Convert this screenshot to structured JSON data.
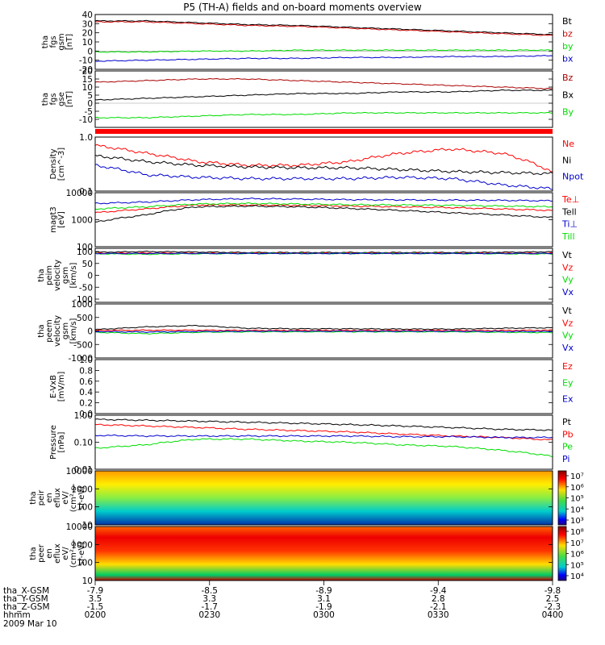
{
  "title": "P5 (TH-A) fields and on-board moments overview",
  "colors": {
    "black": "#000000",
    "red": "#ff0000",
    "dark_red": "#aa0000",
    "green": "#00dd00",
    "blue": "#0000cc",
    "flag": "#ff0000"
  },
  "chart_data": [
    {
      "type": "line",
      "ylabel": [
        "tha",
        "fgs",
        "gsm",
        "[nT]"
      ],
      "ylim": [
        -20,
        40
      ],
      "ticks": [
        "40",
        "30",
        "20",
        "10",
        "0",
        "-10",
        "-20"
      ],
      "tick_values": [
        40,
        30,
        20,
        10,
        0,
        -10,
        -20
      ],
      "series": [
        {
          "name": "Bt",
          "color": "#000000",
          "values": [
            33,
            33,
            31,
            29,
            28,
            26,
            24,
            22,
            20,
            18
          ]
        },
        {
          "name": "bz",
          "color": "#cc0000",
          "values": [
            32,
            32,
            30,
            28,
            27,
            25,
            23,
            21,
            19,
            17
          ]
        },
        {
          "name": "by",
          "color": "#00dd00",
          "values": [
            -1,
            -1,
            0,
            0,
            1,
            1,
            1,
            1,
            1,
            1
          ]
        },
        {
          "name": "bx",
          "color": "#0000cc",
          "values": [
            -11,
            -10,
            -9,
            -8,
            -8,
            -7,
            -7,
            -6,
            -6,
            -5
          ]
        }
      ]
    },
    {
      "type": "line",
      "ylabel": [
        "tha",
        "fgs",
        "gse",
        "[nT]"
      ],
      "ylim": [
        -15,
        20
      ],
      "ticks": [
        "20",
        "15",
        "10",
        "5",
        "0",
        "-5",
        "-10"
      ],
      "tick_values": [
        20,
        15,
        10,
        5,
        0,
        -5,
        -10
      ],
      "series": [
        {
          "name": "Bz",
          "color": "#aa0000",
          "values": [
            13,
            14,
            15,
            15,
            14,
            13,
            12,
            11,
            10,
            9
          ]
        },
        {
          "name": "Bx",
          "color": "#000000",
          "values": [
            2,
            3,
            4,
            5,
            6,
            6,
            7,
            7,
            8,
            8
          ]
        },
        {
          "name": "By",
          "color": "#00dd00",
          "values": [
            -9,
            -9,
            -8,
            -7,
            -7,
            -6,
            -6,
            -6,
            -6,
            -6
          ]
        }
      ]
    },
    {
      "type": "line",
      "ylabel": [
        "Density",
        "[cm^-3]"
      ],
      "scale": "log",
      "ylim": [
        0.1,
        1.0
      ],
      "ticks": [
        "1.0",
        "0.1"
      ],
      "tick_values": [
        1.0,
        0.1
      ],
      "series": [
        {
          "name": "Ne",
          "color": "#ff0000",
          "values": [
            0.7,
            0.5,
            0.35,
            0.3,
            0.3,
            0.35,
            0.5,
            0.6,
            0.5,
            0.22
          ]
        },
        {
          "name": "Ni",
          "color": "#000000",
          "values": [
            0.45,
            0.35,
            0.3,
            0.28,
            0.27,
            0.27,
            0.25,
            0.23,
            0.22,
            0.21
          ]
        },
        {
          "name": "Npot",
          "color": "#0000cc",
          "values": [
            0.3,
            0.2,
            0.18,
            0.17,
            0.17,
            0.17,
            0.18,
            0.17,
            0.13,
            0.11
          ]
        }
      ]
    },
    {
      "type": "line",
      "ylabel": [
        "magt3",
        "[eV]"
      ],
      "scale": "log",
      "ylim": [
        100,
        10000
      ],
      "ticks": [
        "10000",
        "1000",
        "100"
      ],
      "tick_values": [
        10000,
        1000,
        100
      ],
      "series": [
        {
          "name": "Te⊥",
          "color": "#ff0000",
          "values": [
            1800,
            2500,
            3500,
            3500,
            3400,
            3200,
            3000,
            2800,
            2500,
            2200
          ]
        },
        {
          "name": "Tell",
          "color": "#000000",
          "values": [
            800,
            1500,
            3000,
            3200,
            3000,
            2600,
            2200,
            1800,
            1500,
            1200
          ]
        },
        {
          "name": "Ti⊥",
          "color": "#0000cc",
          "values": [
            4000,
            4500,
            5500,
            6000,
            5800,
            5500,
            5400,
            5300,
            5200,
            5000
          ]
        },
        {
          "name": "Till",
          "color": "#00dd00",
          "values": [
            2500,
            3000,
            3800,
            4000,
            3800,
            3600,
            3500,
            3400,
            3200,
            3000
          ]
        }
      ]
    },
    {
      "type": "line",
      "ylabel": [
        "tha",
        "peim",
        "velocity",
        "gsm",
        "[km/s]"
      ],
      "ylim": [
        -1000,
        100
      ],
      "ticks": [
        "100",
        "50",
        "0",
        "-50",
        "-100"
      ],
      "series": [
        {
          "name": "Vt",
          "color": "#000000",
          "values": [
            20,
            35,
            25,
            15,
            15,
            15,
            15,
            15,
            20,
            30
          ]
        },
        {
          "name": "Vz",
          "color": "#ff0000",
          "values": [
            0,
            5,
            0,
            0,
            0,
            0,
            0,
            0,
            0,
            0
          ]
        },
        {
          "name": "Vy",
          "color": "#00dd00",
          "values": [
            -10,
            -20,
            -10,
            -5,
            -5,
            -5,
            -5,
            -5,
            -10,
            -15
          ]
        },
        {
          "name": "Vx",
          "color": "#0000cc",
          "values": [
            -5,
            -5,
            -5,
            -5,
            -5,
            -5,
            -5,
            -5,
            -5,
            -5
          ]
        }
      ]
    },
    {
      "type": "line",
      "ylabel": [
        "tha",
        "peem",
        "velocity",
        "gsm",
        "[km/s]"
      ],
      "ylim": [
        -1000,
        1000
      ],
      "ticks": [
        "1000",
        "500",
        "0",
        "-500",
        "-1000"
      ],
      "tick_values": [
        1000,
        500,
        0,
        -500,
        -1000
      ],
      "series": [
        {
          "name": "Vt",
          "color": "#000000",
          "values": [
            50,
            150,
            200,
            100,
            80,
            80,
            70,
            70,
            100,
            120
          ]
        },
        {
          "name": "Vz",
          "color": "#ff0000",
          "values": [
            20,
            30,
            30,
            20,
            20,
            20,
            20,
            20,
            20,
            30
          ]
        },
        {
          "name": "Vy",
          "color": "#00dd00",
          "values": [
            -50,
            -100,
            -50,
            -30,
            -30,
            -30,
            -30,
            -30,
            -50,
            -60
          ]
        },
        {
          "name": "Vx",
          "color": "#0000cc",
          "values": [
            -20,
            -40,
            -20,
            -10,
            -10,
            -10,
            -10,
            -10,
            -20,
            -20
          ]
        }
      ]
    },
    {
      "type": "line",
      "ylabel": [
        "E-VxB",
        "[mV/m]"
      ],
      "ylim": [
        0.0,
        1.0
      ],
      "ticks": [
        "1.0",
        "0.8",
        "0.6",
        "0.4",
        "0.2",
        "0.0"
      ],
      "tick_values": [
        1.0,
        0.8,
        0.6,
        0.4,
        0.2,
        0.0
      ],
      "series": [
        {
          "name": "Ez",
          "color": "#ff0000",
          "values": []
        },
        {
          "name": "Ey",
          "color": "#00dd00",
          "values": []
        },
        {
          "name": "Ex",
          "color": "#0000cc",
          "values": []
        }
      ]
    },
    {
      "type": "line",
      "ylabel": [
        "Pressure",
        "[nPa]"
      ],
      "scale": "log",
      "ylim": [
        0.01,
        1.0
      ],
      "ticks": [
        "1.00",
        "0.10",
        "0.01"
      ],
      "tick_values": [
        1.0,
        0.1,
        0.01
      ],
      "series": [
        {
          "name": "Pt",
          "color": "#000000",
          "values": [
            0.7,
            0.65,
            0.6,
            0.55,
            0.5,
            0.45,
            0.4,
            0.35,
            0.3,
            0.28
          ]
        },
        {
          "name": "Pb",
          "color": "#ff0000",
          "values": [
            0.45,
            0.4,
            0.35,
            0.3,
            0.27,
            0.24,
            0.2,
            0.17,
            0.15,
            0.12
          ]
        },
        {
          "name": "Pe",
          "color": "#00dd00",
          "values": [
            0.06,
            0.08,
            0.13,
            0.13,
            0.11,
            0.1,
            0.08,
            0.07,
            0.05,
            0.03
          ]
        },
        {
          "name": "Pi",
          "color": "#0000cc",
          "values": [
            0.18,
            0.17,
            0.17,
            0.17,
            0.17,
            0.17,
            0.16,
            0.16,
            0.15,
            0.15
          ]
        }
      ]
    },
    {
      "type": "heatmap",
      "ylabel": [
        "tha",
        "peir",
        "en",
        "eflux",
        "eV/",
        "(cm^2-s-",
        "sr-eV)"
      ],
      "scale": "log",
      "ylim": [
        10,
        10000
      ],
      "ticks": [
        "10000",
        "1000",
        "100",
        "10"
      ],
      "tick_values": [
        10000,
        1000,
        100,
        10
      ],
      "colorbar": {
        "ticks": [
          "10^7",
          "10^6",
          "10^5",
          "10^4",
          "10^3"
        ],
        "range": [
          1000,
          10000000
        ]
      }
    },
    {
      "type": "heatmap",
      "ylabel": [
        "tha",
        "peer",
        "en",
        "eflux",
        "eV/",
        "(cm^2-s-",
        "sr-eV)"
      ],
      "scale": "log",
      "ylim": [
        10,
        10000
      ],
      "ticks": [
        "10000",
        "1000",
        "100",
        "10"
      ],
      "tick_values": [
        10000,
        1000,
        100,
        10
      ],
      "colorbar": {
        "ticks": [
          "10^8",
          "10^7",
          "10^6",
          "10^5",
          "10^4"
        ],
        "range": [
          10000,
          100000000
        ]
      }
    }
  ],
  "x_axis": {
    "rows": [
      {
        "label": "tha_X-GSM",
        "values": [
          "-7.9",
          "-8.5",
          "-8.9",
          "-9.4",
          "-9.8"
        ]
      },
      {
        "label": "tha_Y-GSM",
        "values": [
          "3.5",
          "3.3",
          "3.1",
          "2.8",
          "2.5"
        ]
      },
      {
        "label": "tha_Z-GSM",
        "values": [
          "-1.5",
          "-1.7",
          "-1.9",
          "-2.1",
          "-2.3"
        ]
      },
      {
        "label": "hhmm",
        "values": [
          "0200",
          "0230",
          "0300",
          "0330",
          "0400"
        ]
      }
    ],
    "date": "2009 Mar 10"
  }
}
